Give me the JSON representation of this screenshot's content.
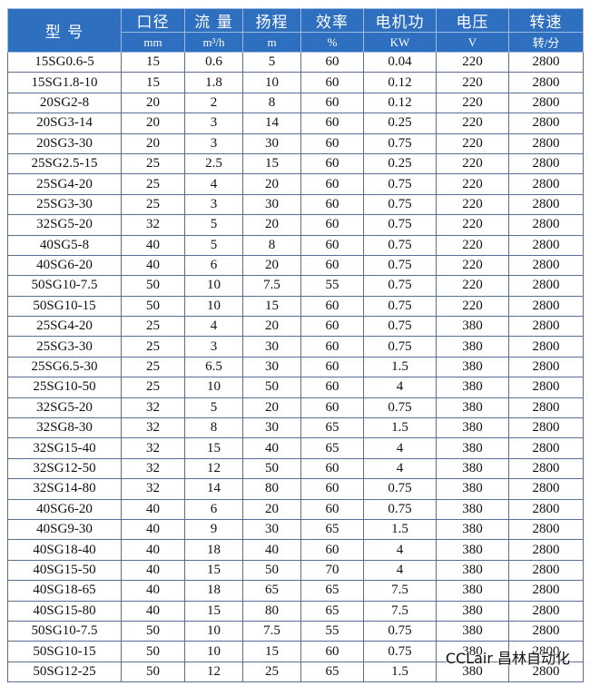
{
  "table": {
    "columns": [
      {
        "name": "型 号"
      },
      {
        "name": "口径",
        "unit": "mm"
      },
      {
        "name": "流 量",
        "unit": "m³/h"
      },
      {
        "name": "扬程",
        "unit": "m"
      },
      {
        "name": "效率",
        "unit": "%"
      },
      {
        "name": "电机功",
        "unit": "KW"
      },
      {
        "name": "电压",
        "unit": "V"
      },
      {
        "name": "转速",
        "unit": "转/分"
      }
    ],
    "rows": [
      [
        "15SG0.6-5",
        "15",
        "0.6",
        "5",
        "60",
        "0.04",
        "220",
        "2800"
      ],
      [
        "15SG1.8-10",
        "15",
        "1.8",
        "10",
        "60",
        "0.12",
        "220",
        "2800"
      ],
      [
        "20SG2-8",
        "20",
        "2",
        "8",
        "60",
        "0.12",
        "220",
        "2800"
      ],
      [
        "20SG3-14",
        "20",
        "3",
        "14",
        "60",
        "0.25",
        "220",
        "2800"
      ],
      [
        "20SG3-30",
        "20",
        "3",
        "30",
        "60",
        "0.75",
        "220",
        "2800"
      ],
      [
        "25SG2.5-15",
        "25",
        "2.5",
        "15",
        "60",
        "0.25",
        "220",
        "2800"
      ],
      [
        "25SG4-20",
        "25",
        "4",
        "20",
        "60",
        "0.75",
        "220",
        "2800"
      ],
      [
        "25SG3-30",
        "25",
        "3",
        "30",
        "60",
        "0.75",
        "220",
        "2800"
      ],
      [
        "32SG5-20",
        "32",
        "5",
        "20",
        "60",
        "0.75",
        "220",
        "2800"
      ],
      [
        "40SG5-8",
        "40",
        "5",
        "8",
        "60",
        "0.75",
        "220",
        "2800"
      ],
      [
        "40SG6-20",
        "40",
        "6",
        "20",
        "60",
        "0.75",
        "220",
        "2800"
      ],
      [
        "50SG10-7.5",
        "50",
        "10",
        "7.5",
        "55",
        "0.75",
        "220",
        "2800"
      ],
      [
        "50SG10-15",
        "50",
        "10",
        "15",
        "60",
        "0.75",
        "220",
        "2800"
      ],
      [
        "25SG4-20",
        "25",
        "4",
        "20",
        "60",
        "0.75",
        "380",
        "2800"
      ],
      [
        "25SG3-30",
        "25",
        "3",
        "30",
        "60",
        "0.75",
        "380",
        "2800"
      ],
      [
        "25SG6.5-30",
        "25",
        "6.5",
        "30",
        "60",
        "1.5",
        "380",
        "2800"
      ],
      [
        "25SG10-50",
        "25",
        "10",
        "50",
        "60",
        "4",
        "380",
        "2800"
      ],
      [
        "32SG5-20",
        "32",
        "5",
        "20",
        "60",
        "0.75",
        "380",
        "2800"
      ],
      [
        "32SG8-30",
        "32",
        "8",
        "30",
        "65",
        "1.5",
        "380",
        "2800"
      ],
      [
        "32SG15-40",
        "32",
        "15",
        "40",
        "65",
        "4",
        "380",
        "2800"
      ],
      [
        "32SG12-50",
        "32",
        "12",
        "50",
        "60",
        "4",
        "380",
        "2800"
      ],
      [
        "32SG14-80",
        "32",
        "14",
        "80",
        "60",
        "0.75",
        "380",
        "2800"
      ],
      [
        "40SG6-20",
        "40",
        "6",
        "20",
        "60",
        "0.75",
        "380",
        "2800"
      ],
      [
        "40SG9-30",
        "40",
        "9",
        "30",
        "65",
        "1.5",
        "380",
        "2800"
      ],
      [
        "40SG18-40",
        "40",
        "18",
        "40",
        "60",
        "4",
        "380",
        "2800"
      ],
      [
        "40SG15-50",
        "40",
        "15",
        "50",
        "70",
        "4",
        "380",
        "2800"
      ],
      [
        "40SG18-65",
        "40",
        "18",
        "65",
        "65",
        "7.5",
        "380",
        "2800"
      ],
      [
        "40SG15-80",
        "40",
        "15",
        "80",
        "65",
        "7.5",
        "380",
        "2800"
      ],
      [
        "50SG10-7.5",
        "50",
        "10",
        "7.5",
        "55",
        "0.75",
        "380",
        "2800"
      ],
      [
        "50SG10-15",
        "50",
        "10",
        "15",
        "60",
        "0.75",
        "380",
        "2800"
      ],
      [
        "50SG12-25",
        "50",
        "12",
        "25",
        "65",
        "1.5",
        "380",
        "2800"
      ]
    ]
  },
  "watermark": "CCLair 昌林自动化"
}
